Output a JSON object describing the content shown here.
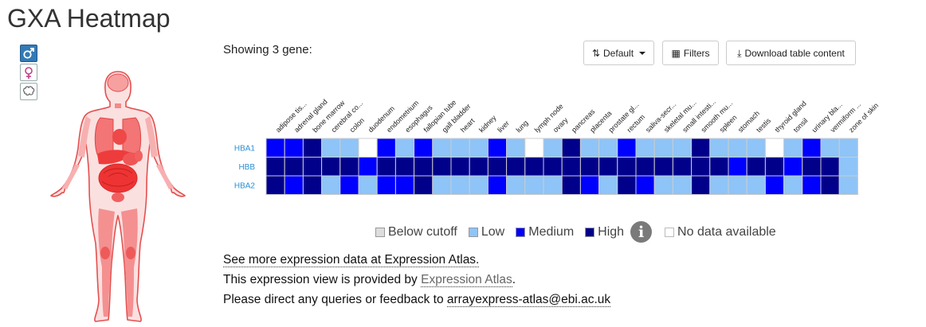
{
  "page": {
    "title": "GXA Heatmap"
  },
  "anatomy": {
    "switches": [
      {
        "icon": "male-icon",
        "active": true
      },
      {
        "icon": "female-icon",
        "active": false
      },
      {
        "icon": "brain-icon",
        "active": false
      }
    ]
  },
  "toolbar": {
    "gene_count_label": "Showing 3 gene:",
    "sort_label": "Default",
    "filters_label": "Filters",
    "download_label": "Download table content"
  },
  "heatmap": {
    "tissues": [
      "adipose tis...",
      "adrenal gland",
      "bone marrow",
      "cerebral co...",
      "colon",
      "duodenum",
      "endometrium",
      "esophagus",
      "fallopian tube",
      "gall bladder",
      "heart",
      "kidney",
      "liver",
      "lung",
      "lymph node",
      "ovary",
      "pancreas",
      "placenta",
      "prostate gl...",
      "rectum",
      "saliva-secr...",
      "skeletal mu...",
      "small intesti...",
      "smooth mu...",
      "spleen",
      "stomach",
      "testis",
      "thyroid gland",
      "tonsil",
      "urinary bla...",
      "vermiform ...",
      "zone of skin"
    ],
    "genes": [
      {
        "name": "HBA1",
        "levels": [
          "medium",
          "medium",
          "high",
          "low",
          "low",
          "nodata",
          "medium",
          "low",
          "medium",
          "low",
          "low",
          "low",
          "medium",
          "low",
          "nodata",
          "low",
          "high",
          "low",
          "low",
          "medium",
          "low",
          "low",
          "low",
          "high",
          "low",
          "low",
          "low",
          "nodata",
          "low",
          "medium",
          "low",
          "low"
        ]
      },
      {
        "name": "HBB",
        "levels": [
          "high",
          "high",
          "high",
          "high",
          "high",
          "medium",
          "high",
          "high",
          "high",
          "high",
          "high",
          "high",
          "high",
          "high",
          "high",
          "high",
          "high",
          "high",
          "high",
          "high",
          "high",
          "high",
          "high",
          "high",
          "high",
          "medium",
          "high",
          "high",
          "medium",
          "high",
          "high",
          "low"
        ]
      },
      {
        "name": "HBA2",
        "levels": [
          "high",
          "medium",
          "high",
          "low",
          "medium",
          "low",
          "medium",
          "medium",
          "high",
          "low",
          "low",
          "low",
          "medium",
          "low",
          "low",
          "low",
          "high",
          "medium",
          "low",
          "high",
          "medium",
          "low",
          "low",
          "high",
          "low",
          "low",
          "low",
          "medium",
          "low",
          "medium",
          "high",
          "low"
        ]
      }
    ]
  },
  "legend": {
    "items": [
      {
        "key": "below",
        "label": "Below cutoff",
        "color": "#dddddd"
      },
      {
        "key": "low",
        "label": "Low",
        "color": "#8ec4f7"
      },
      {
        "key": "medium",
        "label": "Medium",
        "color": "#0000ff"
      },
      {
        "key": "high",
        "label": "High",
        "color": "#00008b"
      }
    ],
    "info_icon": "info-icon",
    "nodata": {
      "label": "No data available",
      "color": "#ffffff"
    }
  },
  "footer": {
    "line1_link": "See more expression data at Expression Atlas.",
    "line2_prefix": "This expression view is provided by ",
    "line2_link": "Expression Atlas",
    "line2_suffix": ".",
    "line3_prefix": "Please direct any queries or feedback to ",
    "line3_email": "arrayexpress-atlas@ebi.ac.uk"
  },
  "colors": {
    "link_blue": "#2a8fd4",
    "grid": "#cccccc",
    "organ_red": "#f04040"
  }
}
